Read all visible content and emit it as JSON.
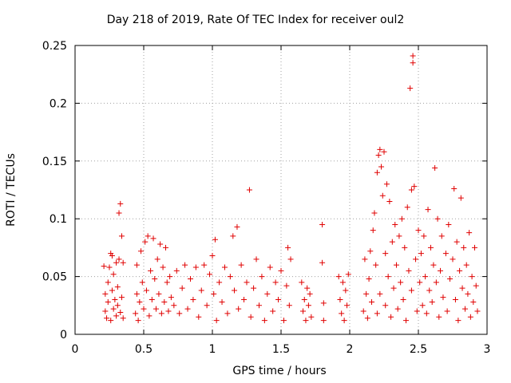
{
  "chart_data": {
    "type": "scatter",
    "title": "Day 218 of 2019, Rate Of TEC Index for receiver oul2",
    "xlabel": "GPS time / hours",
    "ylabel": "ROTI / TECUs",
    "xlim": [
      0,
      3
    ],
    "ylim": [
      0,
      0.25
    ],
    "xticks": [
      0,
      0.5,
      1,
      1.5,
      2,
      2.5,
      3
    ],
    "xtick_labels": [
      "0",
      "0.5",
      "1",
      "1.5",
      "2",
      "2.5",
      "3"
    ],
    "yticks": [
      0,
      0.05,
      0.1,
      0.15,
      0.2,
      0.25
    ],
    "ytick_labels": [
      "0",
      "0.05",
      "0.1",
      "0.15",
      "0.2",
      "0.25"
    ],
    "grid": true,
    "marker": "+",
    "color": "#e00000",
    "series": [
      {
        "name": "ROTI",
        "points": [
          [
            0.21,
            0.059
          ],
          [
            0.22,
            0.035
          ],
          [
            0.22,
            0.02
          ],
          [
            0.23,
            0.014
          ],
          [
            0.24,
            0.028
          ],
          [
            0.24,
            0.045
          ],
          [
            0.25,
            0.058
          ],
          [
            0.26,
            0.012
          ],
          [
            0.26,
            0.07
          ],
          [
            0.27,
            0.068
          ],
          [
            0.27,
            0.038
          ],
          [
            0.28,
            0.052
          ],
          [
            0.28,
            0.022
          ],
          [
            0.29,
            0.03
          ],
          [
            0.3,
            0.062
          ],
          [
            0.3,
            0.016
          ],
          [
            0.31,
            0.025
          ],
          [
            0.31,
            0.041
          ],
          [
            0.32,
            0.105
          ],
          [
            0.32,
            0.065
          ],
          [
            0.33,
            0.113
          ],
          [
            0.33,
            0.019
          ],
          [
            0.34,
            0.085
          ],
          [
            0.34,
            0.032
          ],
          [
            0.35,
            0.062
          ],
          [
            0.35,
            0.014
          ],
          [
            0.44,
            0.018
          ],
          [
            0.45,
            0.035
          ],
          [
            0.45,
            0.06
          ],
          [
            0.46,
            0.012
          ],
          [
            0.47,
            0.028
          ],
          [
            0.48,
            0.072
          ],
          [
            0.49,
            0.045
          ],
          [
            0.5,
            0.022
          ],
          [
            0.51,
            0.08
          ],
          [
            0.52,
            0.038
          ],
          [
            0.53,
            0.085
          ],
          [
            0.54,
            0.016
          ],
          [
            0.55,
            0.055
          ],
          [
            0.56,
            0.03
          ],
          [
            0.57,
            0.083
          ],
          [
            0.58,
            0.048
          ],
          [
            0.59,
            0.022
          ],
          [
            0.6,
            0.065
          ],
          [
            0.61,
            0.035
          ],
          [
            0.62,
            0.078
          ],
          [
            0.63,
            0.018
          ],
          [
            0.64,
            0.058
          ],
          [
            0.65,
            0.028
          ],
          [
            0.66,
            0.075
          ],
          [
            0.67,
            0.045
          ],
          [
            0.68,
            0.02
          ],
          [
            0.69,
            0.05
          ],
          [
            0.7,
            0.032
          ],
          [
            0.72,
            0.025
          ],
          [
            0.74,
            0.055
          ],
          [
            0.76,
            0.018
          ],
          [
            0.78,
            0.04
          ],
          [
            0.8,
            0.06
          ],
          [
            0.82,
            0.022
          ],
          [
            0.84,
            0.048
          ],
          [
            0.86,
            0.03
          ],
          [
            0.88,
            0.058
          ],
          [
            0.9,
            0.015
          ],
          [
            0.92,
            0.038
          ],
          [
            0.94,
            0.06
          ],
          [
            0.96,
            0.025
          ],
          [
            0.98,
            0.052
          ],
          [
            1.0,
            0.068
          ],
          [
            1.01,
            0.035
          ],
          [
            1.02,
            0.082
          ],
          [
            1.03,
            0.012
          ],
          [
            1.05,
            0.045
          ],
          [
            1.07,
            0.028
          ],
          [
            1.09,
            0.058
          ],
          [
            1.11,
            0.018
          ],
          [
            1.13,
            0.05
          ],
          [
            1.15,
            0.085
          ],
          [
            1.16,
            0.038
          ],
          [
            1.18,
            0.093
          ],
          [
            1.19,
            0.022
          ],
          [
            1.21,
            0.06
          ],
          [
            1.23,
            0.03
          ],
          [
            1.25,
            0.045
          ],
          [
            1.27,
            0.125
          ],
          [
            1.28,
            0.015
          ],
          [
            1.3,
            0.04
          ],
          [
            1.32,
            0.065
          ],
          [
            1.34,
            0.025
          ],
          [
            1.36,
            0.05
          ],
          [
            1.38,
            0.012
          ],
          [
            1.4,
            0.035
          ],
          [
            1.42,
            0.058
          ],
          [
            1.44,
            0.02
          ],
          [
            1.46,
            0.045
          ],
          [
            1.48,
            0.03
          ],
          [
            1.5,
            0.055
          ],
          [
            1.52,
            0.012
          ],
          [
            1.54,
            0.042
          ],
          [
            1.55,
            0.075
          ],
          [
            1.56,
            0.025
          ],
          [
            1.57,
            0.065
          ],
          [
            1.65,
            0.045
          ],
          [
            1.66,
            0.02
          ],
          [
            1.67,
            0.03
          ],
          [
            1.68,
            0.012
          ],
          [
            1.69,
            0.04
          ],
          [
            1.7,
            0.025
          ],
          [
            1.71,
            0.035
          ],
          [
            1.72,
            0.015
          ],
          [
            1.8,
            0.095
          ],
          [
            1.8,
            0.062
          ],
          [
            1.81,
            0.027
          ],
          [
            1.81,
            0.012
          ],
          [
            1.92,
            0.05
          ],
          [
            1.93,
            0.03
          ],
          [
            1.94,
            0.018
          ],
          [
            1.95,
            0.045
          ],
          [
            1.96,
            0.012
          ],
          [
            1.97,
            0.038
          ],
          [
            1.98,
            0.025
          ],
          [
            1.99,
            0.052
          ],
          [
            2.1,
            0.02
          ],
          [
            2.11,
            0.065
          ],
          [
            2.12,
            0.035
          ],
          [
            2.13,
            0.014
          ],
          [
            2.14,
            0.048
          ],
          [
            2.15,
            0.072
          ],
          [
            2.16,
            0.028
          ],
          [
            2.17,
            0.09
          ],
          [
            2.18,
            0.105
          ],
          [
            2.19,
            0.06
          ],
          [
            2.2,
            0.018
          ],
          [
            2.2,
            0.14
          ],
          [
            2.21,
            0.155
          ],
          [
            2.22,
            0.035
          ],
          [
            2.22,
            0.16
          ],
          [
            2.23,
            0.145
          ],
          [
            2.24,
            0.12
          ],
          [
            2.25,
            0.158
          ],
          [
            2.26,
            0.07
          ],
          [
            2.26,
            0.025
          ],
          [
            2.27,
            0.13
          ],
          [
            2.28,
            0.05
          ],
          [
            2.29,
            0.115
          ],
          [
            2.3,
            0.015
          ],
          [
            2.31,
            0.08
          ],
          [
            2.32,
            0.04
          ],
          [
            2.33,
            0.095
          ],
          [
            2.34,
            0.06
          ],
          [
            2.35,
            0.022
          ],
          [
            2.36,
            0.085
          ],
          [
            2.37,
            0.045
          ],
          [
            2.38,
            0.1
          ],
          [
            2.39,
            0.03
          ],
          [
            2.4,
            0.075
          ],
          [
            2.41,
            0.012
          ],
          [
            2.42,
            0.11
          ],
          [
            2.43,
            0.055
          ],
          [
            2.44,
            0.213
          ],
          [
            2.45,
            0.125
          ],
          [
            2.45,
            0.038
          ],
          [
            2.46,
            0.241
          ],
          [
            2.46,
            0.235
          ],
          [
            2.47,
            0.128
          ],
          [
            2.48,
            0.065
          ],
          [
            2.49,
            0.02
          ],
          [
            2.5,
            0.09
          ],
          [
            2.51,
            0.045
          ],
          [
            2.52,
            0.07
          ],
          [
            2.53,
            0.025
          ],
          [
            2.54,
            0.085
          ],
          [
            2.55,
            0.05
          ],
          [
            2.56,
            0.018
          ],
          [
            2.57,
            0.108
          ],
          [
            2.58,
            0.038
          ],
          [
            2.59,
            0.075
          ],
          [
            2.6,
            0.028
          ],
          [
            2.61,
            0.06
          ],
          [
            2.62,
            0.144
          ],
          [
            2.63,
            0.045
          ],
          [
            2.64,
            0.1
          ],
          [
            2.65,
            0.015
          ],
          [
            2.66,
            0.055
          ],
          [
            2.67,
            0.085
          ],
          [
            2.68,
            0.032
          ],
          [
            2.7,
            0.07
          ],
          [
            2.71,
            0.02
          ],
          [
            2.72,
            0.095
          ],
          [
            2.73,
            0.048
          ],
          [
            2.75,
            0.065
          ],
          [
            2.76,
            0.126
          ],
          [
            2.77,
            0.03
          ],
          [
            2.78,
            0.08
          ],
          [
            2.79,
            0.012
          ],
          [
            2.8,
            0.055
          ],
          [
            2.81,
            0.118
          ],
          [
            2.82,
            0.04
          ],
          [
            2.83,
            0.075
          ],
          [
            2.84,
            0.022
          ],
          [
            2.85,
            0.06
          ],
          [
            2.86,
            0.035
          ],
          [
            2.87,
            0.088
          ],
          [
            2.88,
            0.015
          ],
          [
            2.89,
            0.05
          ],
          [
            2.9,
            0.028
          ],
          [
            2.91,
            0.075
          ],
          [
            2.92,
            0.042
          ],
          [
            2.93,
            0.02
          ]
        ]
      }
    ]
  }
}
